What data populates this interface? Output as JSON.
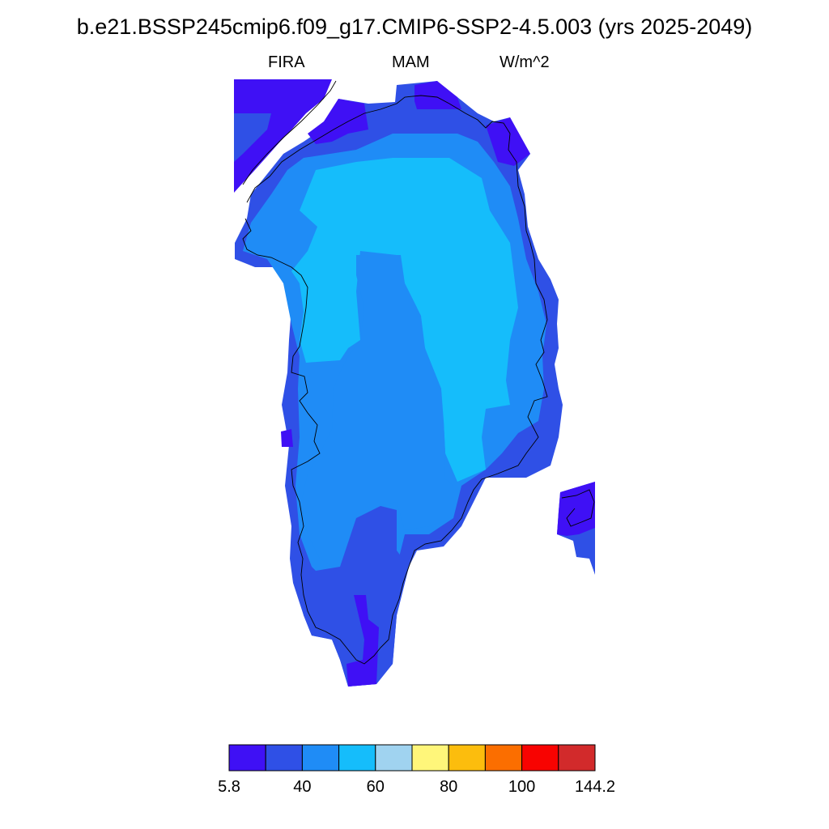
{
  "title": "b.e21.BSSP245cmip6.f09_g17.CMIP6-SSP2-4.5.003 (yrs 2025-2049)",
  "subtitle_left": "FIRA",
  "subtitle_center": "MAM",
  "subtitle_right": "W/m^2",
  "colorbar": {
    "colors": [
      "#3f10f5",
      "#2f50e6",
      "#1f8cf6",
      "#15bdfb",
      "#a0d3f0",
      "#fff67a",
      "#fcbd0d",
      "#fb6e00",
      "#f80301",
      "#d22a2b"
    ],
    "labels": [
      "5.8",
      "40",
      "60",
      "80",
      "100",
      "144.2"
    ]
  },
  "legend": {
    "c1": "#3f10f5",
    "c2": "#2f50e6",
    "c3": "#1f8cf6",
    "c4": "#15bdfb"
  }
}
